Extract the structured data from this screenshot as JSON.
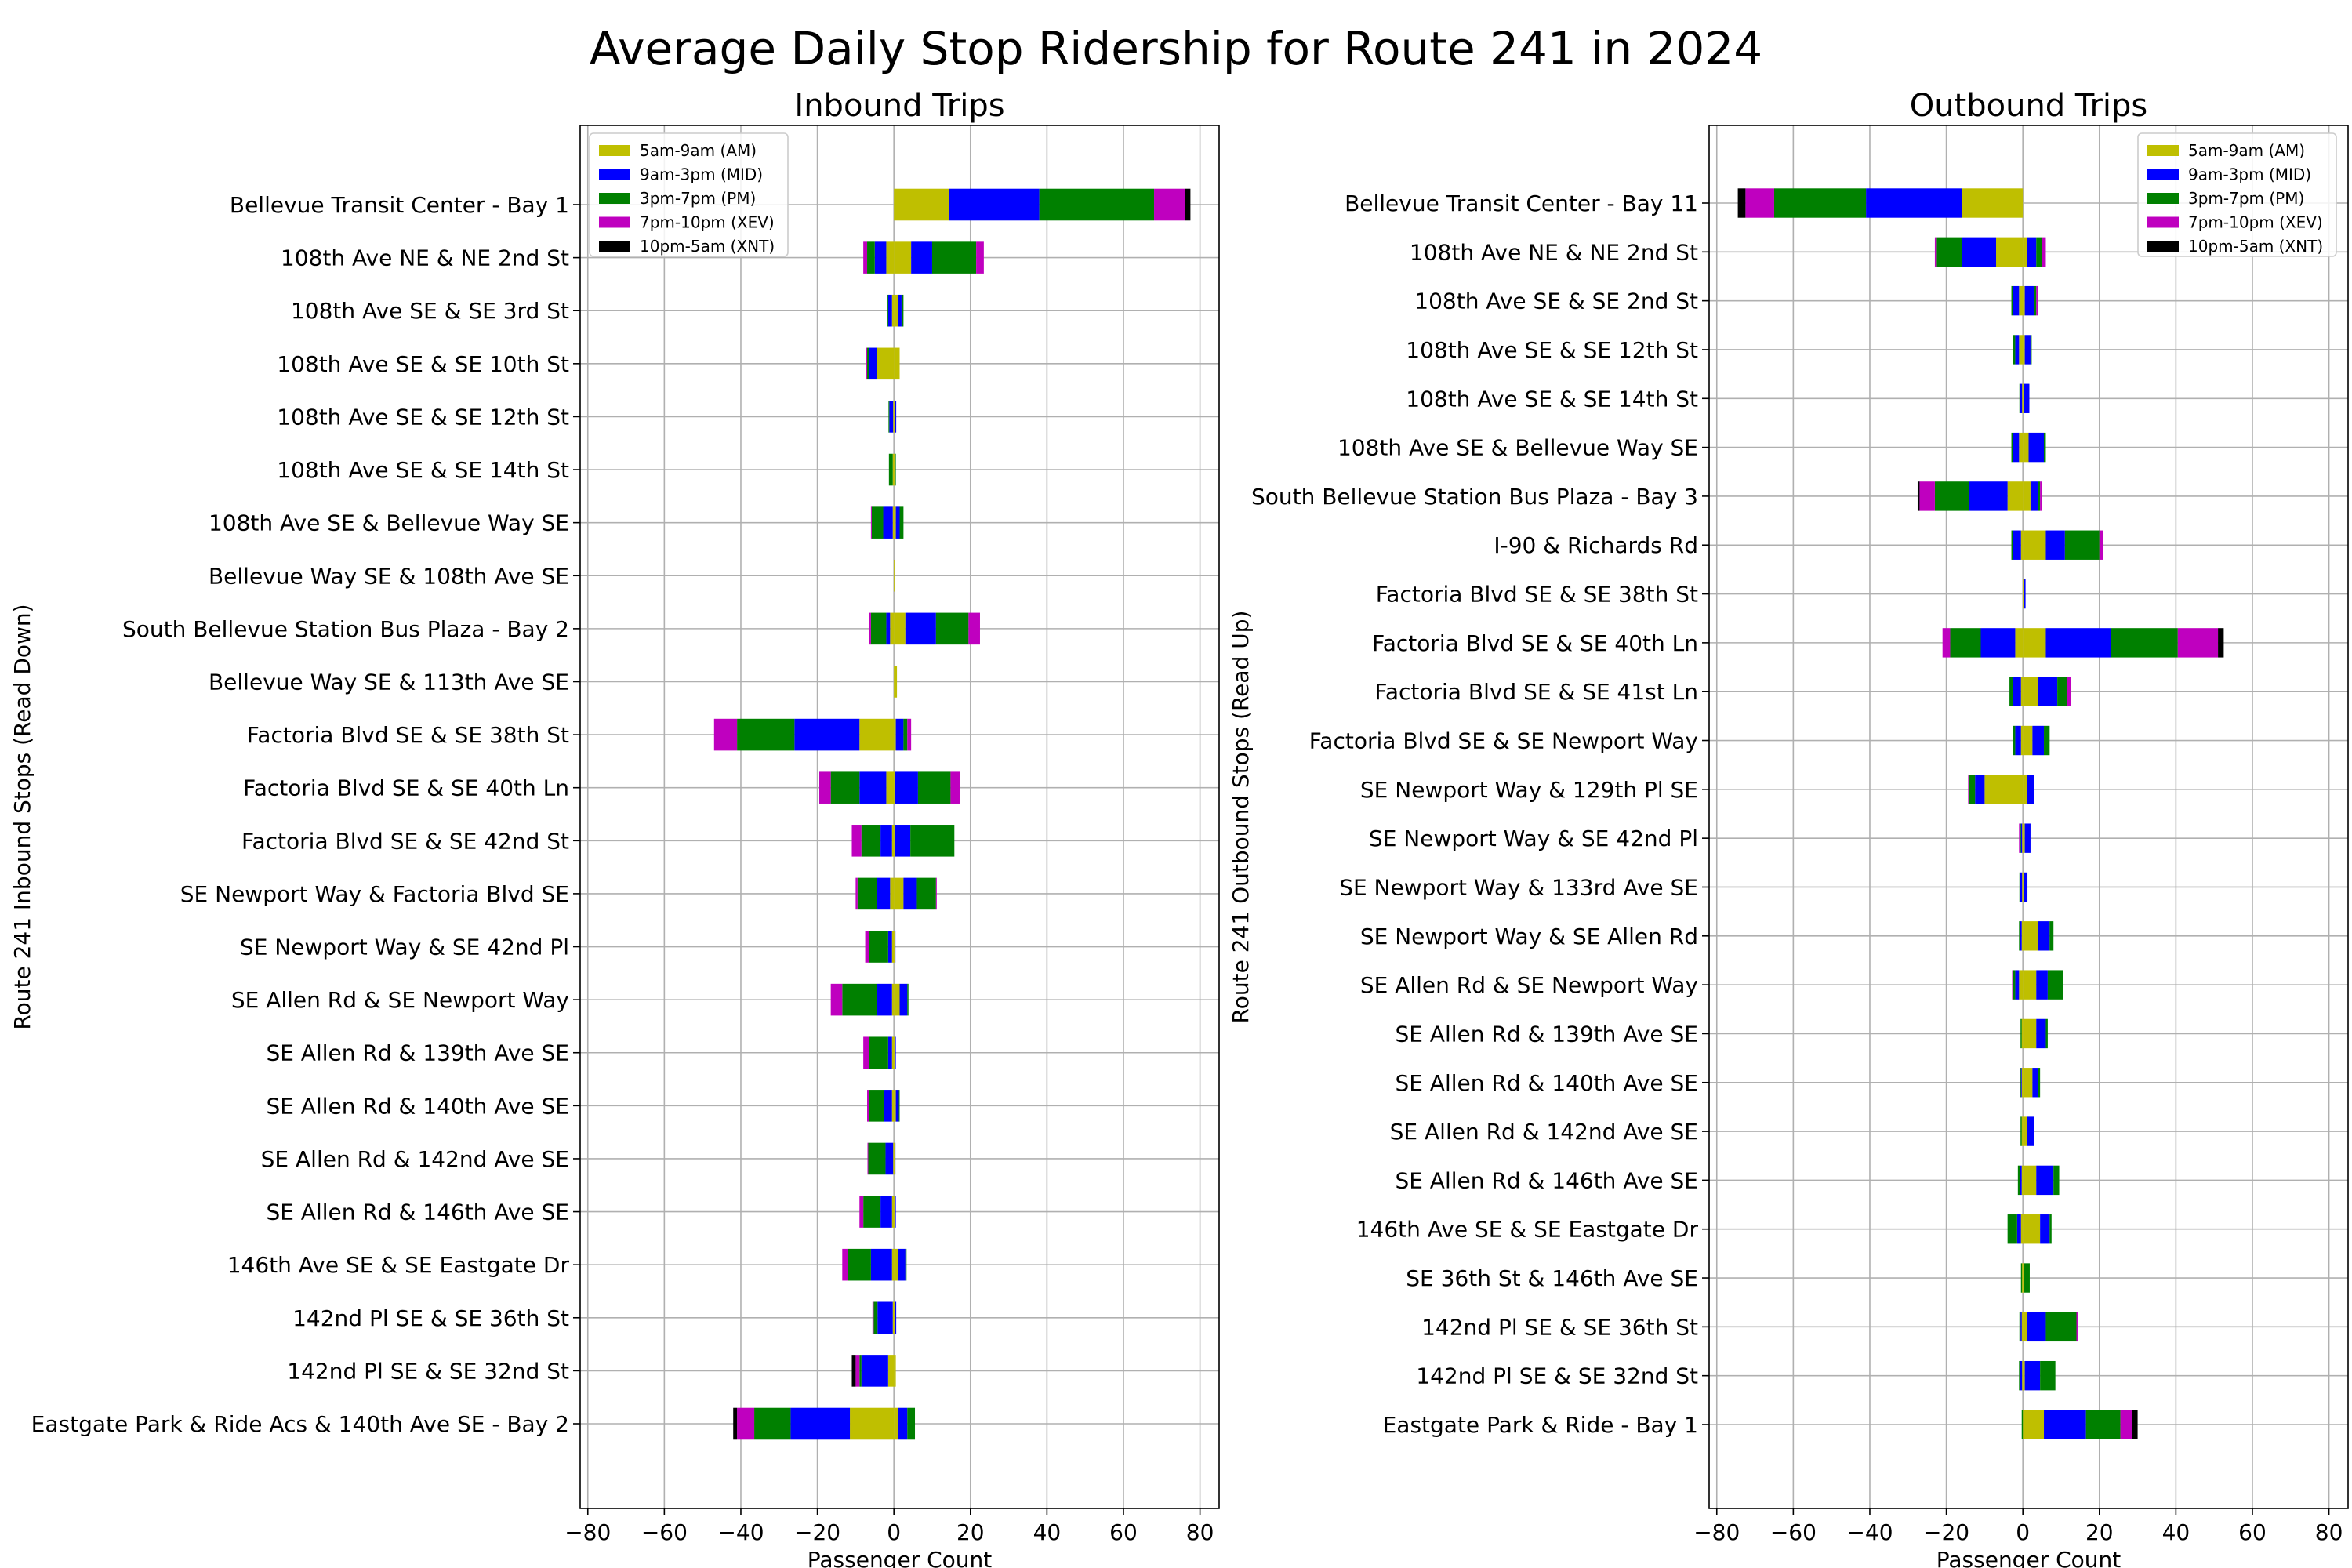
{
  "figure_title": "Average Daily Stop Ridership for Route 241 in 2024",
  "colors": {
    "AM": "#bfbf00",
    "MID": "#0000ff",
    "PM": "#008000",
    "XEV": "#bf00bf",
    "XNT": "#000000",
    "grid": "#b0b0b0"
  },
  "chart_data": [
    {
      "type": "bar",
      "orientation": "horizontal-diverging-stacked",
      "title": "Inbound Trips",
      "xlabel": "Passenger Count",
      "ylabel": "Route 241 Inbound Stops (Read Down)",
      "xlim": [
        -82,
        85
      ],
      "xticks": [
        "−80",
        "−60",
        "−40",
        "−20",
        "0",
        "20",
        "40",
        "60",
        "80"
      ],
      "xtick_values": [
        -80,
        -60,
        -40,
        -20,
        0,
        20,
        40,
        60,
        80
      ],
      "grid": true,
      "legend_position": "top-left",
      "legend": [
        "5am-9am (AM)",
        "9am-3pm (MID)",
        "3pm-7pm (PM)",
        "7pm-10pm (XEV)",
        "10pm-5am (XNT)"
      ],
      "series_order": [
        "AM",
        "MID",
        "PM",
        "XEV",
        "XNT"
      ],
      "value_semantics": "positive side = boardings, negative side = alightings (stacked outward from 0)",
      "categories": [
        "Bellevue Transit Center - Bay 1",
        "108th Ave NE & NE 2nd St",
        "108th Ave SE & SE 3rd St",
        "108th Ave SE & SE 10th St",
        "108th Ave SE & SE 12th St",
        "108th Ave SE & SE 14th St",
        "108th Ave SE & Bellevue Way SE",
        "Bellevue Way SE & 108th Ave SE",
        "South Bellevue Station Bus Plaza - Bay 2",
        "Bellevue Way SE & 113th Ave SE",
        "Factoria Blvd SE & SE 38th St",
        "Factoria Blvd SE & SE 40th Ln",
        "Factoria Blvd SE & SE 42nd St",
        "SE Newport Way & Factoria Blvd SE",
        "SE Newport Way & SE 42nd Pl",
        "SE Allen Rd & SE Newport Way",
        "SE Allen Rd & 139th Ave SE",
        "SE Allen Rd & 140th Ave SE",
        "SE Allen Rd & 142nd Ave SE",
        "SE Allen Rd & 146th Ave SE",
        "146th Ave SE & SE Eastgate Dr",
        "142nd Pl SE & SE 36th St",
        "142nd Pl SE & SE 32nd St",
        "Eastgate Park & Ride Acs & 140th Ave SE - Bay 2"
      ],
      "positive": {
        "AM": [
          14.5,
          4.5,
          1.0,
          1.5,
          0.3,
          0.3,
          0.5,
          0.2,
          3.0,
          0.8,
          0.5,
          0.3,
          0.3,
          2.5,
          0.2,
          1.5,
          0.2,
          0.5,
          0.2,
          0.2,
          1.0,
          0.3,
          0.5,
          1.0
        ],
        "MID": [
          23.5,
          5.5,
          1.0,
          0.0,
          0.3,
          0.0,
          1.0,
          0.0,
          8.0,
          0.0,
          2.0,
          6.0,
          4.0,
          3.5,
          0.2,
          2.0,
          0.3,
          0.8,
          0.2,
          0.3,
          2.0,
          0.3,
          0.0,
          2.5
        ],
        "PM": [
          30.0,
          11.5,
          0.5,
          0.0,
          0.0,
          0.2,
          1.0,
          0.1,
          8.5,
          0.0,
          1.0,
          8.5,
          11.5,
          5.0,
          0.0,
          0.3,
          0.0,
          0.2,
          0.0,
          0.0,
          0.3,
          0.0,
          0.0,
          2.0
        ],
        "XEV": [
          8.0,
          2.0,
          0.0,
          0.0,
          0.0,
          0.0,
          0.0,
          0.0,
          3.0,
          0.0,
          1.0,
          2.5,
          0.0,
          0.2,
          0.0,
          0.0,
          0.0,
          0.0,
          0.0,
          0.0,
          0.0,
          0.0,
          0.0,
          0.0
        ],
        "XNT": [
          1.5,
          0.0,
          0.0,
          0.0,
          0.0,
          0.0,
          0.0,
          0.0,
          0.0,
          0.0,
          0.0,
          0.0,
          0.0,
          0.0,
          0.0,
          0.0,
          0.0,
          0.0,
          0.0,
          0.0,
          0.0,
          0.0,
          0.0,
          0.0
        ]
      },
      "negative": {
        "AM": [
          0.0,
          2.0,
          0.5,
          4.5,
          0.2,
          0.3,
          0.3,
          0.0,
          1.0,
          0.0,
          9.0,
          2.0,
          0.5,
          1.0,
          0.5,
          0.5,
          0.5,
          0.5,
          0.2,
          0.5,
          0.5,
          0.3,
          1.5,
          11.5
        ],
        "MID": [
          0.0,
          3.0,
          1.0,
          2.0,
          1.0,
          0.0,
          2.5,
          0.0,
          1.0,
          0.0,
          17.0,
          7.0,
          3.0,
          3.5,
          1.0,
          4.0,
          1.0,
          2.0,
          2.0,
          3.0,
          5.5,
          4.0,
          7.0,
          15.5
        ],
        "PM": [
          0.0,
          2.0,
          0.3,
          0.5,
          0.2,
          1.0,
          3.0,
          0.0,
          4.0,
          0.0,
          15.0,
          7.5,
          5.0,
          5.0,
          5.0,
          9.0,
          5.0,
          4.0,
          4.5,
          4.5,
          6.0,
          1.0,
          0.5,
          9.5
        ],
        "XEV": [
          0.0,
          1.0,
          0.0,
          0.2,
          0.0,
          0.0,
          0.2,
          0.0,
          0.5,
          0.0,
          6.0,
          3.0,
          2.5,
          0.5,
          1.0,
          3.0,
          1.5,
          0.5,
          0.2,
          1.0,
          1.5,
          0.3,
          1.0,
          4.5
        ],
        "XNT": [
          0.0,
          0.0,
          0.0,
          0.0,
          0.0,
          0.0,
          0.0,
          0.0,
          0.0,
          0.0,
          0.0,
          0.0,
          0.0,
          0.0,
          0.0,
          0.0,
          0.0,
          0.0,
          0.0,
          0.0,
          0.0,
          0.0,
          1.0,
          1.0
        ]
      }
    },
    {
      "type": "bar",
      "orientation": "horizontal-diverging-stacked",
      "title": "Outbound Trips",
      "xlabel": "Passenger Count",
      "ylabel": "Route 241 Outbound Stops (Read Up)",
      "xlim": [
        -82,
        85
      ],
      "xticks": [
        "−80",
        "−60",
        "−40",
        "−20",
        "0",
        "20",
        "40",
        "60",
        "80"
      ],
      "xtick_values": [
        -80,
        -60,
        -40,
        -20,
        0,
        20,
        40,
        60,
        80
      ],
      "grid": true,
      "legend_position": "top-right",
      "legend": [
        "5am-9am (AM)",
        "9am-3pm (MID)",
        "3pm-7pm (PM)",
        "7pm-10pm (XEV)",
        "10pm-5am (XNT)"
      ],
      "series_order": [
        "AM",
        "MID",
        "PM",
        "XEV",
        "XNT"
      ],
      "value_semantics": "positive side = boardings, negative side = alightings (stacked outward from 0)",
      "categories": [
        "Bellevue Transit Center - Bay 11",
        "108th Ave NE & NE 2nd St",
        "108th Ave SE & SE 2nd St",
        "108th Ave SE & SE 12th St",
        "108th Ave SE & SE 14th St",
        "108th Ave SE & Bellevue Way SE",
        "South Bellevue Station Bus Plaza - Bay 3",
        "I-90 & Richards Rd",
        "Factoria Blvd SE & SE 38th St",
        "Factoria Blvd SE & SE 40th Ln",
        "Factoria Blvd SE & SE 41st Ln",
        "Factoria Blvd SE & SE Newport Way",
        "SE Newport Way & 129th Pl SE",
        "SE Newport Way & SE 42nd Pl",
        "SE Newport Way & 133rd Ave SE",
        "SE Newport Way & SE Allen Rd",
        "SE Allen Rd & SE Newport Way",
        "SE Allen Rd & 139th Ave SE",
        "SE Allen Rd & 140th Ave SE",
        "SE Allen Rd & 142nd Ave SE",
        "SE Allen Rd & 146th Ave SE",
        "146th Ave SE & SE Eastgate Dr",
        "SE 36th St & 146th Ave SE",
        "142nd Pl SE & SE 36th St",
        "142nd Pl SE & SE 32nd St",
        "Eastgate Park & Ride - Bay 1"
      ],
      "positive": {
        "AM": [
          0.0,
          1.0,
          0.5,
          0.5,
          0.2,
          1.5,
          2.0,
          6.0,
          0.2,
          6.0,
          4.0,
          2.5,
          1.0,
          0.5,
          0.2,
          4.0,
          3.5,
          3.5,
          2.5,
          1.0,
          3.5,
          4.5,
          0.3,
          1.0,
          0.5,
          5.5
        ],
        "MID": [
          0.0,
          2.5,
          2.5,
          1.5,
          1.5,
          4.0,
          2.0,
          5.0,
          0.5,
          17.0,
          5.0,
          3.0,
          2.0,
          1.5,
          1.0,
          3.0,
          3.0,
          2.5,
          1.5,
          2.0,
          4.5,
          2.5,
          0.0,
          5.0,
          4.0,
          11.0
        ],
        "PM": [
          0.0,
          1.5,
          0.5,
          0.3,
          0.0,
          0.5,
          0.5,
          9.0,
          0.0,
          17.5,
          2.5,
          1.5,
          0.0,
          0.0,
          0.0,
          1.0,
          4.0,
          0.5,
          0.5,
          0.0,
          1.5,
          0.5,
          1.5,
          8.0,
          4.0,
          9.0
        ],
        "XEV": [
          0.0,
          1.0,
          0.5,
          0.0,
          0.0,
          0.0,
          0.5,
          1.0,
          0.0,
          10.5,
          1.0,
          0.0,
          0.0,
          0.0,
          0.0,
          0.0,
          0.0,
          0.0,
          0.0,
          0.0,
          0.0,
          0.0,
          0.0,
          0.5,
          0.0,
          3.0
        ],
        "XNT": [
          0.0,
          0.0,
          0.0,
          0.0,
          0.0,
          0.0,
          0.0,
          0.0,
          0.0,
          1.5,
          0.0,
          0.0,
          0.0,
          0.0,
          0.0,
          0.0,
          0.0,
          0.0,
          0.0,
          0.0,
          0.0,
          0.0,
          0.0,
          0.0,
          0.0,
          1.5
        ]
      },
      "negative": {
        "AM": [
          16.0,
          7.0,
          1.0,
          1.0,
          0.2,
          1.0,
          4.0,
          0.5,
          0.0,
          2.0,
          0.5,
          0.5,
          10.0,
          0.2,
          0.2,
          0.3,
          1.0,
          0.3,
          0.3,
          0.3,
          0.3,
          0.5,
          0.2,
          0.3,
          0.2,
          0.0
        ],
        "MID": [
          25.0,
          9.0,
          1.5,
          1.0,
          0.5,
          1.5,
          10.0,
          2.0,
          0.0,
          9.0,
          2.0,
          1.5,
          2.5,
          0.3,
          0.5,
          0.5,
          1.0,
          0.0,
          0.2,
          0.0,
          0.5,
          1.0,
          0.0,
          0.3,
          0.5,
          0.0
        ],
        "PM": [
          24.0,
          6.5,
          0.5,
          0.5,
          0.2,
          0.5,
          9.0,
          0.5,
          0.0,
          8.0,
          1.0,
          0.5,
          1.5,
          0.2,
          0.2,
          0.2,
          0.5,
          0.3,
          0.3,
          0.3,
          0.5,
          2.5,
          0.3,
          0.3,
          0.3,
          0.3
        ],
        "XEV": [
          7.5,
          0.5,
          0.0,
          0.0,
          0.0,
          0.0,
          4.0,
          0.0,
          0.0,
          2.0,
          0.0,
          0.0,
          0.3,
          0.3,
          0.0,
          0.0,
          0.3,
          0.0,
          0.0,
          0.0,
          0.0,
          0.0,
          0.0,
          0.0,
          0.0,
          0.0
        ],
        "XNT": [
          2.0,
          0.0,
          0.0,
          0.0,
          0.0,
          0.0,
          0.5,
          0.0,
          0.0,
          0.0,
          0.0,
          0.0,
          0.0,
          0.0,
          0.0,
          0.0,
          0.0,
          0.0,
          0.0,
          0.0,
          0.0,
          0.0,
          0.0,
          0.0,
          0.0,
          0.0
        ]
      }
    }
  ]
}
